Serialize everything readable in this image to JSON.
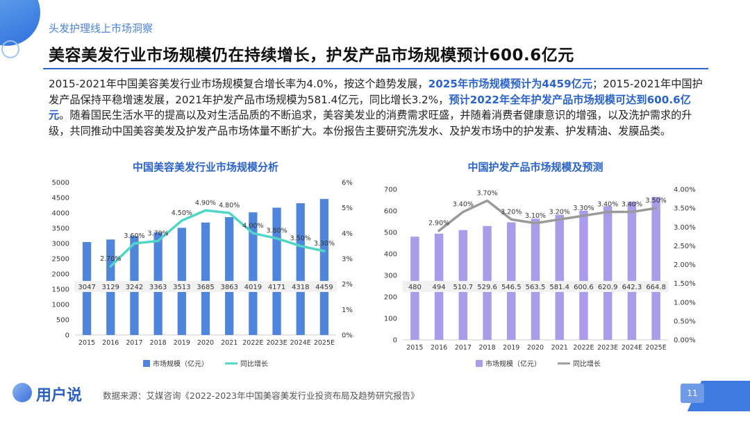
{
  "header": {
    "breadcrumb": "头发护理线上市场洞察",
    "title": "美容美发行业市场规模仍在持续增长，护发产品市场规模预计600.6亿元"
  },
  "intro": {
    "p1": "2015-2021年中国美容美发行业市场规模复合增长率为4.0%，按这个趋势发展，",
    "h1": "2025年市场规模预计为4459亿元",
    "p2": "；2015-2021年中国护发产品保持平稳增速发展，2021年护发产品市场规模为581.4亿元，同比增长3.2%，",
    "h2": "预计2022年全年护发产品市场规模可达到600.6亿元",
    "p3": "。随着国民生活水平的提高以及对生活品质的不断追求，美容美发业的消费需求旺盛，并随着消费者健康意识的增强，以及洗护需求的升级，共同推动中国美容美发及护发产品市场体量不断扩大。本份报告主要研究洗发水、及护发市场中的护发素、护发精油、发膜品类。"
  },
  "colors": {
    "accent": "#2a63c9",
    "bar_blue": "#4f86db",
    "line_teal": "#4fd6c6",
    "bar_purple": "#ab9cea",
    "line_gray": "#9a9a9a"
  },
  "chart_data": [
    {
      "type": "bar",
      "title": "中国美容美发行业市场规模分析",
      "categories": [
        "2015",
        "2016",
        "2017",
        "2018",
        "2019",
        "2020",
        "2021",
        "2022E",
        "2023E",
        "2024E",
        "2025E"
      ],
      "ylim": [
        0,
        5000
      ],
      "yticks": [
        "0",
        "500",
        "1000",
        "1500",
        "2000",
        "2500",
        "3000",
        "3500",
        "4000",
        "4500",
        "5000"
      ],
      "y2lim": [
        0,
        6
      ],
      "y2ticks": [
        "0%",
        "1%",
        "2%",
        "3%",
        "4%",
        "5%",
        "6%"
      ],
      "series": [
        {
          "name": "市场规模（亿元）",
          "kind": "bar",
          "values": [
            3047,
            3129,
            3242,
            3363,
            3513,
            3685,
            3863,
            4019,
            4171,
            4318,
            4459
          ],
          "labels": [
            "3047",
            "3129",
            "3242",
            "3363",
            "3513",
            "3685",
            "3863",
            "4019",
            "4171",
            "4318",
            "4459"
          ]
        },
        {
          "name": "同比增长",
          "kind": "line",
          "axis": "right",
          "values": [
            null,
            2.7,
            3.6,
            3.7,
            4.5,
            4.9,
            4.8,
            4.0,
            3.8,
            3.5,
            3.3
          ],
          "labels": [
            "",
            "2.70%",
            "3.60%",
            "3.70%",
            "4.50%",
            "4.90%",
            "4.80%",
            "4.00%",
            "3.80%",
            "3.50%",
            "3.30%"
          ]
        }
      ],
      "legend": "bottom"
    },
    {
      "type": "bar",
      "title": "中国护发产品市场规模及预测",
      "categories": [
        "2015",
        "2016",
        "2017",
        "2018",
        "2019",
        "2020",
        "2021",
        "2022E",
        "2023E",
        "2024E",
        "2025E"
      ],
      "ylim": [
        0,
        700
      ],
      "yticks": [
        "0",
        "100",
        "200",
        "300",
        "400",
        "500",
        "600",
        "700"
      ],
      "y2lim": [
        0,
        4
      ],
      "y2ticks": [
        "0.00%",
        "0.50%",
        "1.00%",
        "1.50%",
        "2.00%",
        "2.50%",
        "3.00%",
        "3.50%",
        "4.00%"
      ],
      "series": [
        {
          "name": "市场规模（亿元）",
          "kind": "bar",
          "values": [
            480,
            494,
            510.7,
            529.6,
            546.5,
            563.5,
            581.4,
            600.6,
            620.9,
            642.3,
            664.8
          ],
          "labels": [
            "480",
            "494",
            "510.7",
            "529.6",
            "546.5",
            "563.5",
            "581.4",
            "600.6",
            "620.9",
            "642.3",
            "664.8"
          ]
        },
        {
          "name": "同比增长",
          "kind": "line",
          "axis": "right",
          "values": [
            null,
            2.9,
            3.4,
            3.7,
            3.2,
            3.1,
            3.2,
            3.3,
            3.4,
            3.4,
            3.5
          ],
          "labels": [
            "",
            "2.90%",
            "3.40%",
            "3.70%",
            "3.20%",
            "3.10%",
            "3.20%",
            "3.30%",
            "3.40%",
            "3.40%",
            "3.50%"
          ]
        }
      ],
      "legend": "bottom"
    }
  ],
  "footer": {
    "logo_text": "用户说",
    "source": "数据来源：艾媒咨询《2022-2023年中国美容美发行业投资布局及趋势研究报告》",
    "page_number": "11"
  }
}
